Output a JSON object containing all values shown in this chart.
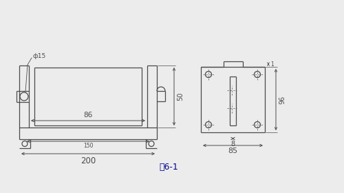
{
  "bg_color": "#ececec",
  "line_color": "#4a4a4a",
  "title": "图6-1",
  "title_fontsize": 9,
  "fig_width": 5.0,
  "fig_height": 2.8,
  "dpi": 100
}
